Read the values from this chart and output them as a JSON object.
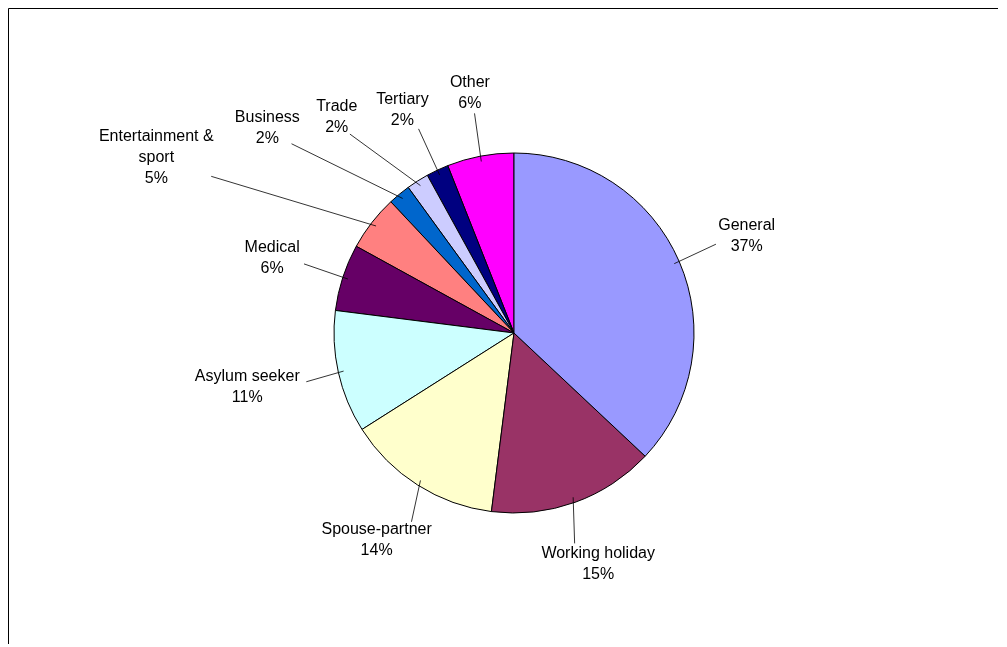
{
  "chart_data": {
    "type": "pie",
    "categories": [
      "General",
      "Working holiday",
      "Spouse-partner",
      "Asylum seeker",
      "Medical",
      "Entertainment & sport",
      "Business",
      "Trade",
      "Tertiary",
      "Other"
    ],
    "values": [
      37,
      15,
      14,
      11,
      6,
      5,
      2,
      2,
      2,
      6
    ],
    "value_labels": [
      "37%",
      "15%",
      "14%",
      "11%",
      "6%",
      "5%",
      "2%",
      "2%",
      "2%",
      "6%"
    ],
    "colors": [
      "#9999ff",
      "#993366",
      "#ffffcc",
      "#ccffff",
      "#660066",
      "#ff8080",
      "#0066cc",
      "#ccccff",
      "#000080",
      "#ff00ff"
    ]
  }
}
